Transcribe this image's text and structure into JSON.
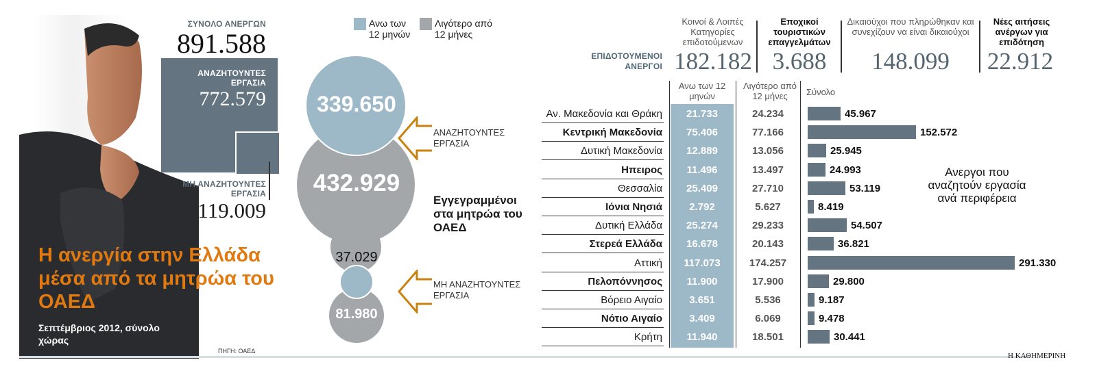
{
  "title": "Η ανεργία στην Ελλάδα μέσα από τα μητρώα του ΟΑΕΔ",
  "subtitle": "Σεπτέμβριος 2012, σύνολο χώρας",
  "source": "ΠΗΓΗ: ΟΑΕΔ",
  "publisher": "Η ΚΑΘΗΜΕΡΙΝΗ",
  "totals": {
    "total_label": "ΣΥΝΟΛΟ ΑΝΕΡΓΩΝ",
    "total_value": "891.588",
    "seeking_label": "ΑΝΑΖΗΤΟΥΝΤΕΣ ΕΡΓΑΣΙΑ",
    "seeking_value": "772.579",
    "not_seeking_label": "ΜΗ ΑΝΑΖΗΤΟΥΝΤΕΣ ΕΡΓΑΣΙΑ",
    "not_seeking_value": "119.009"
  },
  "legend": {
    "over12_label": "Ανω των 12 μηνών",
    "under12_label": "Λιγότερο από 12 μήνες",
    "over12_color": "#9db8c7",
    "under12_color": "#a3a7aa"
  },
  "circles": {
    "seeking_over12": "339.650",
    "seeking_under12": "432.929",
    "notseeking_over12": "37.029",
    "notseeking_under12": "81.980",
    "seeking_arrow_label": "ΑΝΑΖΗΤΟΥΝΤΕΣ ΕΡΓΑΣΙΑ",
    "notseeking_arrow_label": "ΜΗ ΑΝΑΖΗΤΟΥΝΤΕΣ ΕΡΓΑΣΙΑ",
    "registered_label": "Εγγεγραμμένοι στα μητρώα του ΟΑΕΔ"
  },
  "benefits": {
    "row_label": "ΕΠΙΔΟΤΟΥΜΕΝΟΙ ΑΝΕΡΓΟΙ",
    "items": [
      {
        "label": "Κοινοί & Λοιπές Κατηγορίες επιδοτούμενων",
        "value": "182.182"
      },
      {
        "label": "Εποχικοί τουριστικών επαγγελμάτων",
        "value": "3.688"
      },
      {
        "label": "Δικαιούχοι που πληρώθηκαν και συνεχίζουν να είναι δικαιούχοι",
        "value": "148.099"
      },
      {
        "label": "Νέες αιτήσεις ανέργων για επιδότηση",
        "value": "22.912"
      }
    ]
  },
  "table": {
    "col_over12": "Ανω των 12 μηνών",
    "col_under12": "Λιγότερο από 12 μήνες",
    "col_total": "Σύνολο",
    "side_note": "Ανεργοι που αναζητούν εργασία ανά περιφέρεια"
  },
  "chart_data": {
    "type": "bar",
    "title": "Ανεργοι που αναζητούν εργασία ανά περιφέρεια",
    "categories": [
      "Αν. Μακεδονία και Θράκη",
      "Κεντρική Μακεδονία",
      "Δυτική Μακεδονία",
      "Ηπειρος",
      "Θεσσαλία",
      "Ιόνια Νησιά",
      "Δυτική Ελλάδα",
      "Στερεά Ελλάδα",
      "Αττική",
      "Πελοπόννησος",
      "Βόρειο Αιγαίο",
      "Νότιο Αιγαίο",
      "Κρήτη"
    ],
    "over12": [
      "21.733",
      "75.406",
      "12.889",
      "11.496",
      "25.409",
      "2.792",
      "25.274",
      "16.678",
      "117.073",
      "11.900",
      "3.651",
      "3.409",
      "11.940"
    ],
    "under12": [
      "24.234",
      "77.166",
      "13.056",
      "13.497",
      "27.710",
      "5.627",
      "29.233",
      "20.143",
      "174.257",
      "17.900",
      "5.536",
      "6.069",
      "18.501"
    ],
    "totals_label": [
      "45.967",
      "152.572",
      "25.945",
      "24.993",
      "53.119",
      "8.419",
      "54.507",
      "36.821",
      "291.330",
      "29.800",
      "9.187",
      "9.478",
      "30.441"
    ],
    "values": [
      45967,
      152572,
      25945,
      24993,
      53119,
      8419,
      54507,
      36821,
      291330,
      29800,
      9187,
      9478,
      30441
    ],
    "bold_rows": [
      false,
      true,
      false,
      true,
      false,
      true,
      false,
      true,
      false,
      true,
      false,
      true,
      false
    ]
  }
}
